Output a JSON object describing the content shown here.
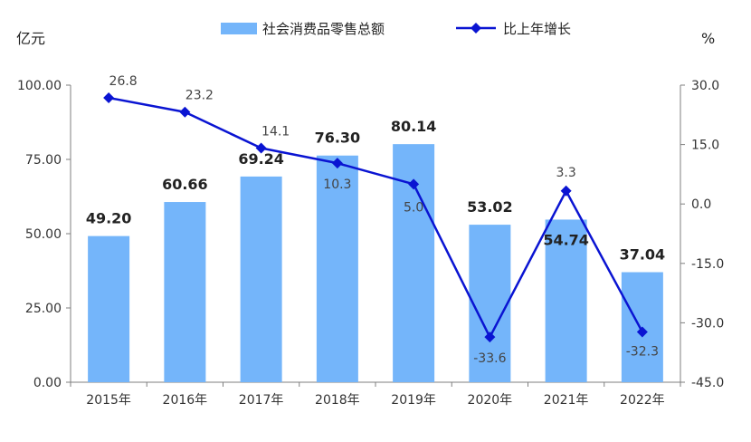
{
  "chart_data": {
    "type": "bar",
    "categories": [
      "2015年",
      "2016年",
      "2017年",
      "2018年",
      "2019年",
      "2020年",
      "2021年",
      "2022年"
    ],
    "series": [
      {
        "name": "社会消费品零售总额",
        "type": "bar",
        "axis": "left",
        "values": [
          49.2,
          60.66,
          69.24,
          76.3,
          80.14,
          53.02,
          54.74,
          37.04
        ],
        "labels": [
          "49.20",
          "60.66",
          "69.24",
          "76.30",
          "80.14",
          "53.02",
          "54.74",
          "37.04"
        ],
        "color": "#74B5FA"
      },
      {
        "name": "比上年增长",
        "type": "line",
        "axis": "right",
        "values": [
          26.8,
          23.2,
          14.1,
          10.3,
          5.0,
          -33.6,
          3.3,
          -32.3
        ],
        "labels": [
          "26.8",
          "23.2",
          "14.1",
          "10.3",
          "5.0",
          "-33.6",
          "3.3",
          "-32.3"
        ],
        "color": "#0A14D2"
      }
    ],
    "ylabel_left": "亿元",
    "ylabel_right": "%",
    "ylim_left": [
      0,
      100
    ],
    "ylim_right": [
      -45,
      30
    ],
    "left_ticks": [
      "0.00",
      "25.00",
      "50.00",
      "75.00",
      "100.00"
    ],
    "right_ticks": [
      "-45.0",
      "-30.0",
      "-15.0",
      "0.0",
      "15.0",
      "30.0"
    ],
    "grid": false,
    "legend_position": "top-center"
  }
}
